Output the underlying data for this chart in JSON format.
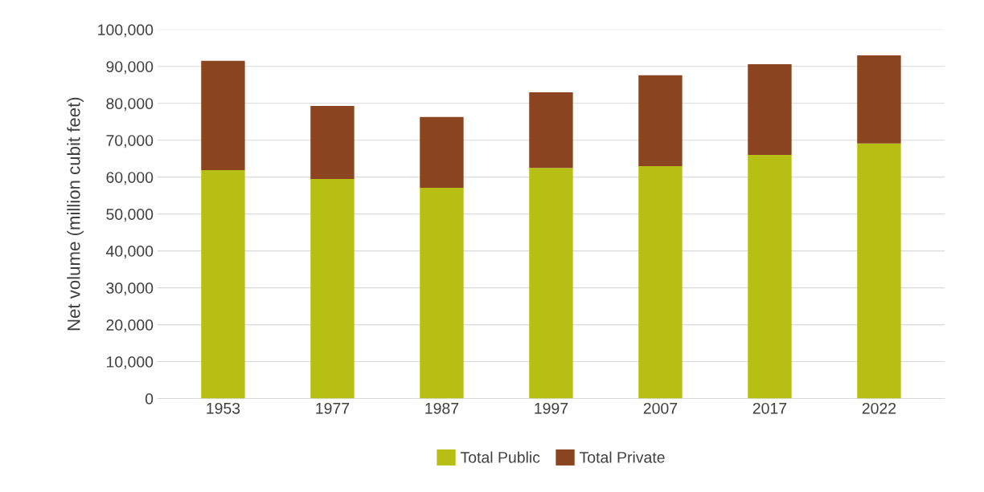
{
  "chart_data": {
    "type": "bar",
    "stacked": true,
    "categories": [
      "1953",
      "1977",
      "1987",
      "1997",
      "2007",
      "2017",
      "2022"
    ],
    "series": [
      {
        "name": "Total Public",
        "color": "#b7bf14",
        "values": [
          61900,
          59500,
          57100,
          62500,
          63000,
          66000,
          69100
        ]
      },
      {
        "name": "Total Private",
        "color": "#8a4420",
        "values": [
          29600,
          19800,
          19200,
          20500,
          24600,
          24600,
          23900
        ]
      }
    ],
    "ylabel": "Net volume (million cubit feet)",
    "ylim": [
      0,
      100000
    ],
    "yticks": [
      {
        "value": 0,
        "label": "0"
      },
      {
        "value": 10000,
        "label": "10,000"
      },
      {
        "value": 20000,
        "label": "20,000"
      },
      {
        "value": 30000,
        "label": "30,000"
      },
      {
        "value": 40000,
        "label": "40,000"
      },
      {
        "value": 50000,
        "label": "50,000"
      },
      {
        "value": 60000,
        "label": "60,000"
      },
      {
        "value": 70000,
        "label": "70,000"
      },
      {
        "value": 80000,
        "label": "80,000"
      },
      {
        "value": 90000,
        "label": "90,000"
      },
      {
        "value": 100000,
        "label": "100,000"
      }
    ],
    "grid": "y",
    "legend": "bottom"
  }
}
